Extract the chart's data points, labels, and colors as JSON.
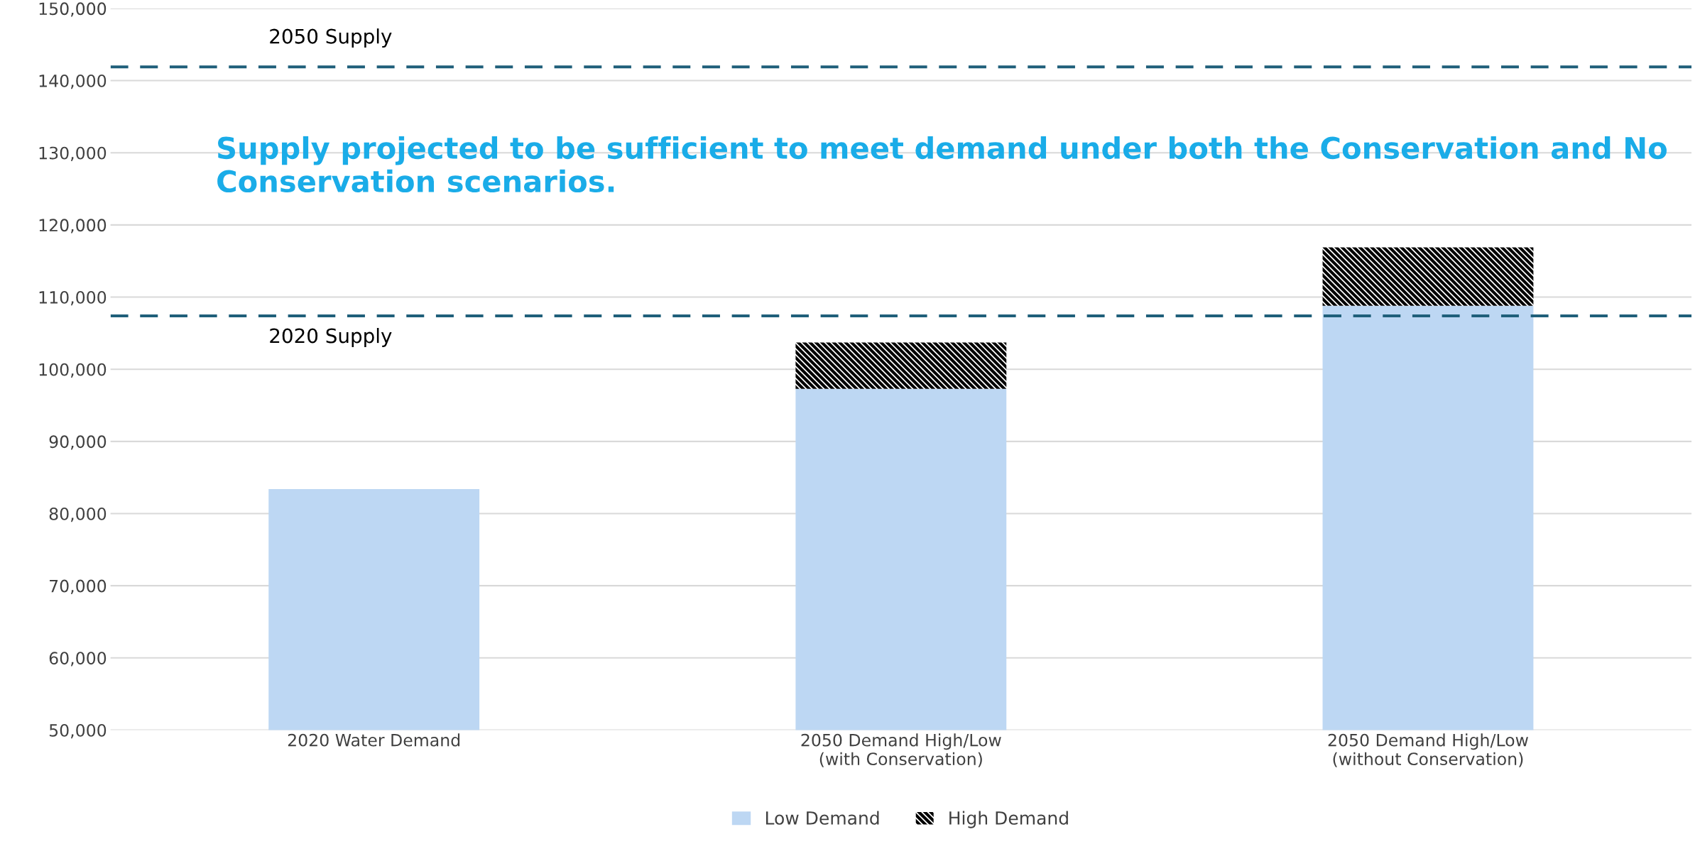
{
  "chart_data": {
    "type": "bar",
    "stacked": true,
    "categories": [
      "2020 Water Demand",
      "2050 Demand High/Low\n(with Conservation)",
      "2050 Demand High/Low\n(without Conservation)"
    ],
    "series": [
      {
        "name": "Low Demand",
        "color": "#bdd7f3",
        "values": [
          83400,
          97300,
          108800
        ]
      },
      {
        "name": "High Demand",
        "color": "#000000",
        "values": [
          null,
          6400,
          8100
        ],
        "base": [
          null,
          97300,
          108800
        ]
      }
    ],
    "ylim": [
      50000,
      150000
    ],
    "yticks": [
      {
        "value": 50000,
        "label": "50,000"
      },
      {
        "value": 60000,
        "label": "60,000"
      },
      {
        "value": 70000,
        "label": "70,000"
      },
      {
        "value": 80000,
        "label": "80,000"
      },
      {
        "value": 90000,
        "label": "90,000"
      },
      {
        "value": 100000,
        "label": "100,000"
      },
      {
        "value": 110000,
        "label": "110,000"
      },
      {
        "value": 120000,
        "label": "120,000"
      },
      {
        "value": 130000,
        "label": "130,000"
      },
      {
        "value": 140000,
        "label": "140,000"
      },
      {
        "value": 150000,
        "label": "150,000"
      }
    ],
    "ref_lines": [
      {
        "axis": "y",
        "value": 141900,
        "label": "2050 Supply",
        "color": "#1f5f7a",
        "line_style": "dashed"
      },
      {
        "axis": "y",
        "value": 107400,
        "label": "2020 Supply",
        "color": "#1f5f7a",
        "line_style": "dashed"
      }
    ],
    "annotations": [
      "Supply projected to be sufficient to meet demand under both the Conservation and No Conservation scenarios."
    ],
    "grid": "y",
    "legend": "bottom"
  }
}
